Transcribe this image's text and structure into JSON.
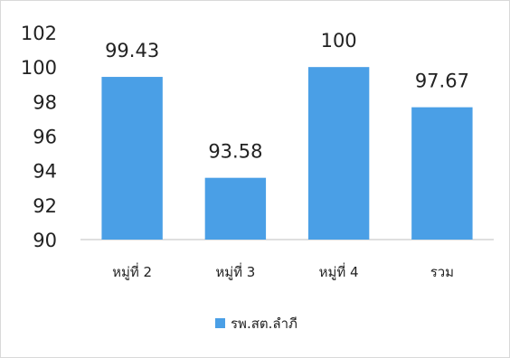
{
  "chart_data": {
    "type": "bar",
    "categories": [
      "หมู่ที่ 2",
      "หมู่ที่ 3",
      "หมู่ที่ 4",
      "รวม"
    ],
    "series": [
      {
        "name": "รพ.สต.ลำภี",
        "values": [
          99.43,
          93.58,
          100,
          97.67
        ]
      }
    ],
    "data_labels": [
      "99.43",
      "93.58",
      "100",
      "97.67"
    ],
    "ylim": [
      90,
      102
    ],
    "yticks": [
      90,
      92,
      94,
      96,
      98,
      100,
      102
    ],
    "grid": false,
    "legend_position": "bottom",
    "bar_color": "#4a9fe6"
  }
}
